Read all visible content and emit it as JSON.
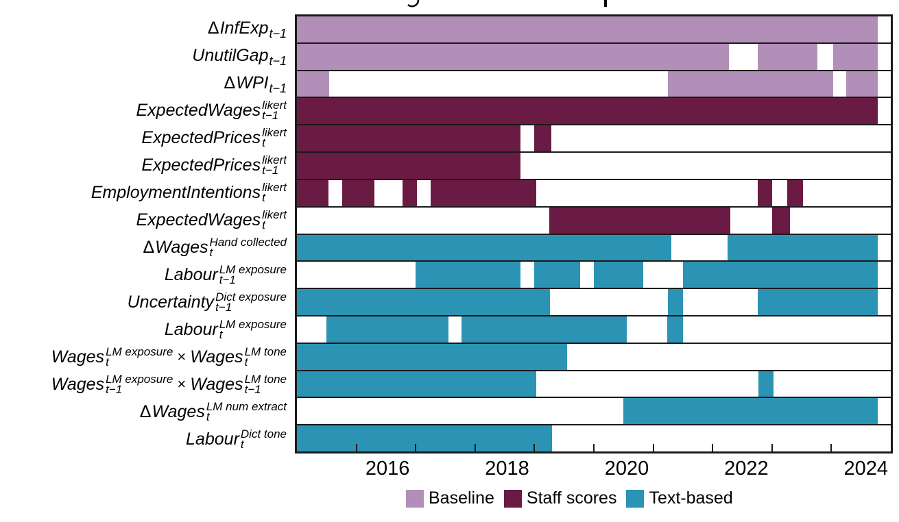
{
  "chart_data": {
    "type": "bar",
    "subtype": "horizontal timeline of variable inclusion (Gantt-style presence bars)",
    "x_range": [
      2015,
      2025
    ],
    "x_ticks": [
      2016,
      2017,
      2018,
      2019,
      2020,
      2021,
      2022,
      2023,
      2024
    ],
    "x_tick_label_values": [
      "2016",
      "2018",
      "2020",
      "2022",
      "2024"
    ],
    "x_labels_centered_between_ticks": true,
    "grid": false,
    "legend_position": "bottom",
    "times_symbol": "×",
    "legend": [
      {
        "label": "Baseline",
        "color": "#b28fb8"
      },
      {
        "label": "Staff scores",
        "color": "#6a1b43"
      },
      {
        "label": "Text-based",
        "color": "#2b93b4"
      }
    ],
    "rows": [
      {
        "category": "Baseline",
        "label": {
          "pre": "Δ",
          "terms": [
            {
              "base": "InfExp",
              "sub": "t−1",
              "sup": ""
            }
          ]
        },
        "segments": [
          [
            2015.0,
            2024.78
          ]
        ]
      },
      {
        "category": "Baseline",
        "label": {
          "pre": "",
          "terms": [
            {
              "base": "UnutilGap",
              "sub": "t−1",
              "sup": ""
            }
          ]
        },
        "segments": [
          [
            2015.0,
            2022.28
          ],
          [
            2022.76,
            2023.77
          ],
          [
            2024.03,
            2024.78
          ]
        ]
      },
      {
        "category": "Baseline",
        "label": {
          "pre": "Δ",
          "terms": [
            {
              "base": "WPI",
              "sub": "t−1",
              "sup": ""
            }
          ]
        },
        "segments": [
          [
            2015.0,
            2015.54
          ],
          [
            2021.25,
            2024.03
          ],
          [
            2024.25,
            2024.78
          ]
        ]
      },
      {
        "category": "Staff scores",
        "label": {
          "pre": "",
          "terms": [
            {
              "base": "ExpectedWages",
              "sub": "t−1",
              "sup": "likert"
            }
          ]
        },
        "segments": [
          [
            2015.0,
            2024.78
          ]
        ]
      },
      {
        "category": "Staff scores",
        "label": {
          "pre": "",
          "terms": [
            {
              "base": "ExpectedPrices",
              "sub": "t",
              "sup": "likert"
            }
          ]
        },
        "segments": [
          [
            2015.0,
            2018.76
          ],
          [
            2019.0,
            2019.28
          ]
        ]
      },
      {
        "category": "Staff scores",
        "label": {
          "pre": "",
          "terms": [
            {
              "base": "ExpectedPrices",
              "sub": "t−1",
              "sup": "likert"
            }
          ]
        },
        "segments": [
          [
            2015.0,
            2018.76
          ]
        ]
      },
      {
        "category": "Staff scores",
        "label": {
          "pre": "",
          "terms": [
            {
              "base": "EmploymentIntentions",
              "sub": "t",
              "sup": "likert"
            }
          ]
        },
        "segments": [
          [
            2015.0,
            2015.53
          ],
          [
            2015.76,
            2016.3
          ],
          [
            2016.78,
            2017.02
          ],
          [
            2017.25,
            2019.03
          ],
          [
            2022.76,
            2023.0
          ],
          [
            2023.26,
            2023.52
          ]
        ]
      },
      {
        "category": "Staff scores",
        "label": {
          "pre": "",
          "terms": [
            {
              "base": "ExpectedWages",
              "sub": "t",
              "sup": "likert"
            }
          ]
        },
        "segments": [
          [
            2019.25,
            2022.3
          ],
          [
            2023.0,
            2023.3
          ]
        ]
      },
      {
        "category": "Text-based",
        "label": {
          "pre": "Δ",
          "terms": [
            {
              "base": "Wages",
              "sub": "t",
              "sup": "Hand collected"
            }
          ]
        },
        "segments": [
          [
            2015.0,
            2021.3
          ],
          [
            2022.25,
            2024.78
          ]
        ]
      },
      {
        "category": "Text-based",
        "label": {
          "pre": "",
          "terms": [
            {
              "base": "Labour",
              "sub": "t−1",
              "sup": "LM exposure"
            }
          ]
        },
        "segments": [
          [
            2017.0,
            2018.77
          ],
          [
            2019.0,
            2019.77
          ],
          [
            2020.0,
            2020.83
          ],
          [
            2021.5,
            2024.78
          ]
        ]
      },
      {
        "category": "Text-based",
        "label": {
          "pre": "",
          "terms": [
            {
              "base": "Uncertainty",
              "sub": "t−1",
              "sup": "Dict exposure"
            }
          ]
        },
        "segments": [
          [
            2015.0,
            2019.26
          ],
          [
            2021.25,
            2021.5
          ],
          [
            2022.76,
            2024.78
          ]
        ]
      },
      {
        "category": "Text-based",
        "label": {
          "pre": "",
          "terms": [
            {
              "base": "Labour",
              "sub": "t",
              "sup": "LM exposure"
            }
          ]
        },
        "segments": [
          [
            2015.5,
            2017.55
          ],
          [
            2017.77,
            2020.55
          ],
          [
            2021.23,
            2021.5
          ]
        ]
      },
      {
        "category": "Text-based",
        "label": {
          "pre": "",
          "terms": [
            {
              "base": "Wages",
              "sub": "t",
              "sup": "LM exposure"
            },
            {
              "base": "Wages",
              "sub": "t",
              "sup": "LM tone"
            }
          ]
        },
        "segments": [
          [
            2015.0,
            2019.55
          ]
        ]
      },
      {
        "category": "Text-based",
        "label": {
          "pre": "",
          "terms": [
            {
              "base": "Wages",
              "sub": "t−1",
              "sup": "LM exposure"
            },
            {
              "base": "Wages",
              "sub": "t−1",
              "sup": "LM tone"
            }
          ]
        },
        "segments": [
          [
            2015.0,
            2019.03
          ],
          [
            2022.77,
            2023.03
          ]
        ]
      },
      {
        "category": "Text-based",
        "label": {
          "pre": "Δ",
          "terms": [
            {
              "base": "Wages",
              "sub": "t",
              "sup": "LM num extract"
            }
          ]
        },
        "segments": [
          [
            2020.5,
            2024.78
          ]
        ]
      },
      {
        "category": "Text-based",
        "label": {
          "pre": "",
          "terms": [
            {
              "base": "Labour",
              "sub": "t",
              "sup": "Dict tone"
            }
          ]
        },
        "segments": [
          [
            2015.0,
            2019.3
          ]
        ]
      }
    ]
  },
  "frame_color": "#1a1a1a"
}
